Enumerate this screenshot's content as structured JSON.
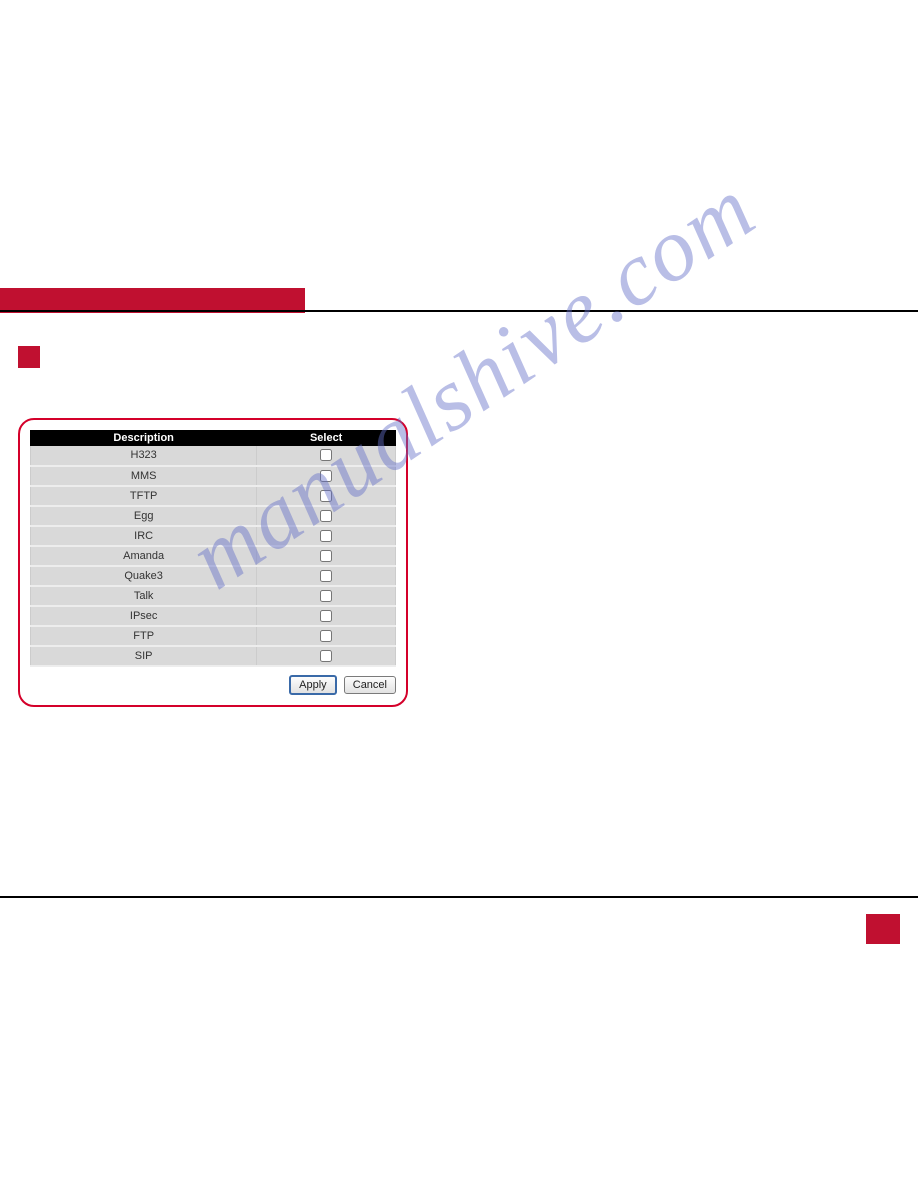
{
  "watermark_text": "manualshive.com",
  "table": {
    "headers": {
      "description": "Description",
      "select": "Select"
    },
    "rows": [
      {
        "desc": "H323",
        "checked": false
      },
      {
        "desc": "MMS",
        "checked": false
      },
      {
        "desc": "TFTP",
        "checked": false
      },
      {
        "desc": "Egg",
        "checked": false
      },
      {
        "desc": "IRC",
        "checked": false
      },
      {
        "desc": "Amanda",
        "checked": false
      },
      {
        "desc": "Quake3",
        "checked": false
      },
      {
        "desc": "Talk",
        "checked": false
      },
      {
        "desc": "IPsec",
        "checked": false
      },
      {
        "desc": "FTP",
        "checked": false
      },
      {
        "desc": "SIP",
        "checked": false
      }
    ]
  },
  "buttons": {
    "apply": "Apply",
    "cancel": "Cancel"
  },
  "colors": {
    "brand_red": "#c01030",
    "panel_border": "#d4002a",
    "row_bg": "#d9d9d9",
    "header_bg": "#000000",
    "header_fg": "#ffffff",
    "watermark": "rgba(100,110,200,0.45)"
  }
}
